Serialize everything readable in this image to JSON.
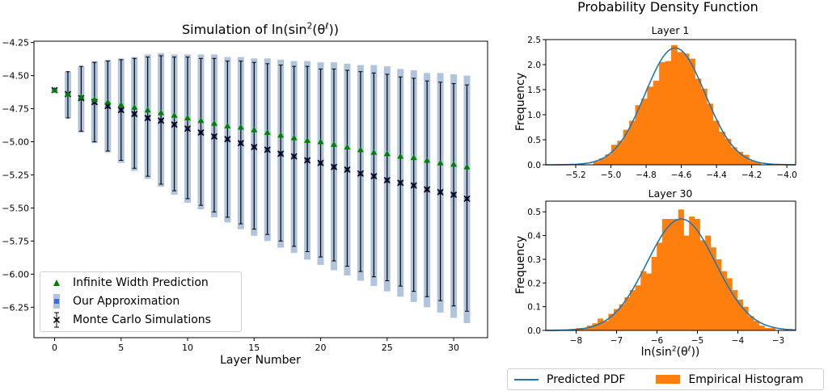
{
  "figure": {
    "right_title": "Probability Density Function"
  },
  "chart_data": [
    {
      "type": "errorbar",
      "title": {
        "prefix": "Simulation of ln(sin",
        "sup1": "2",
        "mid": "(θ",
        "sup2": "ℓ",
        "suffix": "))"
      },
      "xlabel": "Layer Number",
      "ylabel": "",
      "xlim": [
        -1.55,
        32.55
      ],
      "ylim": [
        -6.48,
        -4.24
      ],
      "xticks": [
        0,
        5,
        10,
        15,
        20,
        25,
        30
      ],
      "yticks": [
        -4.25,
        -4.5,
        -4.75,
        -5.0,
        -5.25,
        -5.5,
        -5.75,
        -6.0,
        -6.25
      ],
      "grid": false,
      "legend_position": "lower-left",
      "x": [
        0,
        1,
        2,
        3,
        4,
        5,
        6,
        7,
        8,
        9,
        10,
        11,
        12,
        13,
        14,
        15,
        16,
        17,
        18,
        19,
        20,
        21,
        22,
        23,
        24,
        25,
        26,
        27,
        28,
        29,
        30,
        31
      ],
      "series": [
        {
          "name": "Infinite Width Prediction",
          "marker": "triangle",
          "color": "#008000",
          "values": [
            -4.61,
            -4.64,
            -4.66,
            -4.68,
            -4.7,
            -4.72,
            -4.74,
            -4.76,
            -4.78,
            -4.8,
            -4.82,
            -4.84,
            -4.86,
            -4.88,
            -4.89,
            -4.91,
            -4.93,
            -4.95,
            -4.97,
            -4.99,
            -5.0,
            -5.02,
            -5.04,
            -5.06,
            -5.08,
            -5.09,
            -5.11,
            -5.12,
            -5.14,
            -5.16,
            -5.17,
            -5.19
          ]
        },
        {
          "name": "Our Approximation",
          "marker": "square",
          "color": "#4169e1",
          "band_color": "#b0c4de",
          "values": [
            -4.61,
            -4.64,
            -4.67,
            -4.7,
            -4.73,
            -4.76,
            -4.79,
            -4.82,
            -4.84,
            -4.87,
            -4.9,
            -4.93,
            -4.96,
            -4.98,
            -5.01,
            -5.04,
            -5.06,
            -5.09,
            -5.11,
            -5.14,
            -5.16,
            -5.19,
            -5.21,
            -5.24,
            -5.26,
            -5.29,
            -5.31,
            -5.33,
            -5.36,
            -5.38,
            -5.4,
            -5.43
          ],
          "upper": [
            -4.6,
            -4.47,
            -4.43,
            -4.39,
            -4.38,
            -4.37,
            -4.36,
            -4.34,
            -4.33,
            -4.34,
            -4.34,
            -4.34,
            -4.34,
            -4.36,
            -4.36,
            -4.37,
            -4.37,
            -4.38,
            -4.39,
            -4.39,
            -4.4,
            -4.4,
            -4.41,
            -4.42,
            -4.42,
            -4.43,
            -4.45,
            -4.46,
            -4.48,
            -4.48,
            -4.49,
            -4.5
          ],
          "lower": [
            -4.62,
            -4.82,
            -4.93,
            -5.01,
            -5.08,
            -5.16,
            -5.22,
            -5.28,
            -5.34,
            -5.4,
            -5.46,
            -5.51,
            -5.57,
            -5.61,
            -5.66,
            -5.71,
            -5.75,
            -5.8,
            -5.84,
            -5.89,
            -5.93,
            -5.97,
            -6.01,
            -6.05,
            -6.09,
            -6.13,
            -6.17,
            -6.21,
            -6.25,
            -6.29,
            -6.33,
            -6.37
          ]
        },
        {
          "name": "Monte Carlo Simulations",
          "marker": "x",
          "color": "#000000",
          "values": [
            -4.61,
            -4.64,
            -4.67,
            -4.7,
            -4.73,
            -4.76,
            -4.79,
            -4.82,
            -4.84,
            -4.87,
            -4.9,
            -4.93,
            -4.96,
            -4.98,
            -5.01,
            -5.04,
            -5.06,
            -5.09,
            -5.11,
            -5.14,
            -5.16,
            -5.19,
            -5.21,
            -5.24,
            -5.26,
            -5.29,
            -5.31,
            -5.33,
            -5.36,
            -5.38,
            -5.4,
            -5.43
          ],
          "upper": [
            -4.6,
            -4.47,
            -4.43,
            -4.4,
            -4.39,
            -4.38,
            -4.37,
            -4.36,
            -4.35,
            -4.36,
            -4.36,
            -4.37,
            -4.37,
            -4.39,
            -4.39,
            -4.4,
            -4.41,
            -4.42,
            -4.43,
            -4.43,
            -4.45,
            -4.45,
            -4.46,
            -4.47,
            -4.48,
            -4.49,
            -4.51,
            -4.52,
            -4.54,
            -4.55,
            -4.56,
            -4.57
          ],
          "lower": [
            -4.62,
            -4.82,
            -4.92,
            -5.0,
            -5.07,
            -5.14,
            -5.2,
            -5.26,
            -5.32,
            -5.37,
            -5.43,
            -5.48,
            -5.53,
            -5.57,
            -5.62,
            -5.66,
            -5.7,
            -5.75,
            -5.79,
            -5.83,
            -5.87,
            -5.9,
            -5.94,
            -5.98,
            -6.02,
            -6.05,
            -6.09,
            -6.13,
            -6.17,
            -6.2,
            -6.24,
            -6.28
          ]
        }
      ]
    },
    {
      "type": "histogram",
      "title": "Layer 1",
      "xlabel": "",
      "ylabel": "Frequency",
      "xlim": [
        -5.37,
        -3.95
      ],
      "ylim": [
        0,
        2.5
      ],
      "xticks": [
        -5.2,
        -5.0,
        -4.8,
        -4.6,
        -4.4,
        -4.2,
        -4.0
      ],
      "yticks": [
        0.0,
        0.5,
        1.0,
        1.5,
        2.0,
        2.5
      ],
      "histogram": {
        "name": "Empirical Histogram",
        "color": "#ff7f0e",
        "bin_start": -5.1,
        "bin_width": 0.034,
        "heights": [
          0.07,
          0.13,
          0.21,
          0.4,
          0.48,
          0.7,
          0.88,
          1.19,
          1.32,
          1.56,
          1.68,
          2.05,
          2.07,
          2.39,
          2.25,
          2.22,
          2.12,
          1.72,
          1.52,
          1.22,
          0.88,
          0.66,
          0.52,
          0.35,
          0.26,
          0.2,
          0.09,
          0.05
        ]
      },
      "pdf": {
        "name": "Predicted PDF",
        "color": "#1f77b4",
        "distribution": "normal",
        "mean": -4.635,
        "std": 0.171
      }
    },
    {
      "type": "histogram",
      "title": "Layer 30",
      "xlabel": {
        "prefix": "ln(sin",
        "sup1": "2",
        "mid": "(θ",
        "sup2": "ℓ",
        "suffix": "))"
      },
      "ylabel": "Frequency",
      "xlim": [
        -8.75,
        -2.57
      ],
      "ylim": [
        0,
        0.545
      ],
      "xticks": [
        -8,
        -7,
        -6,
        -5,
        -4,
        -3
      ],
      "yticks": [
        0.0,
        0.1,
        0.2,
        0.3,
        0.4,
        0.5
      ],
      "histogram": {
        "name": "Empirical Histogram",
        "color": "#ff7f0e",
        "bin_start": -8.0,
        "bin_width": 0.133,
        "heights": [
          0.01,
          0.01,
          0.02,
          0.03,
          0.05,
          0.04,
          0.07,
          0.09,
          0.11,
          0.14,
          0.17,
          0.19,
          0.25,
          0.24,
          0.31,
          0.37,
          0.47,
          0.47,
          0.47,
          0.51,
          0.4,
          0.48,
          0.47,
          0.38,
          0.4,
          0.35,
          0.3,
          0.25,
          0.22,
          0.17,
          0.13,
          0.1,
          0.06,
          0.04,
          0.02,
          0.01,
          0.01
        ]
      },
      "pdf": {
        "name": "Predicted PDF",
        "color": "#1f77b4",
        "distribution": "normal",
        "mean": -5.4,
        "std": 0.849
      }
    }
  ],
  "legends": {
    "left": [
      "Infinite Width Prediction",
      "Our Approximation",
      "Monte Carlo Simulations"
    ],
    "right": [
      "Predicted PDF",
      "Empirical Histogram"
    ]
  }
}
